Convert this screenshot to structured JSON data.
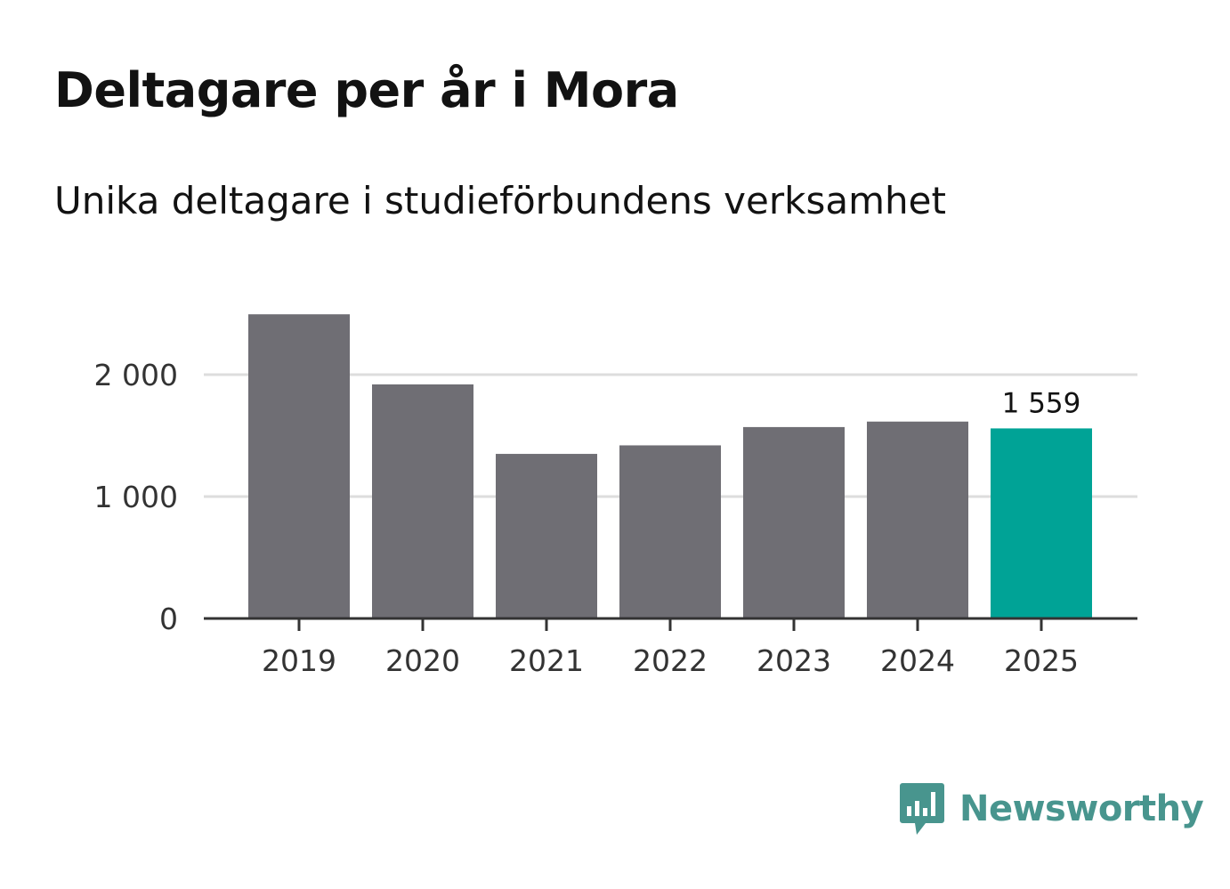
{
  "title": "Deltagare per år i Mora",
  "subtitle": "Unika deltagare i studieförbundens verksamhet",
  "brand": {
    "name": "Newsworthy",
    "color": "#48958e"
  },
  "colors": {
    "bar": "#6f6e74",
    "highlight": "#00a396",
    "grid": "#dddddd",
    "axis": "#333333"
  },
  "chart_data": {
    "type": "bar",
    "title": "Deltagare per år i Mora",
    "subtitle": "Unika deltagare i studieförbundens verksamhet",
    "categories": [
      "2019",
      "2020",
      "2021",
      "2022",
      "2023",
      "2024",
      "2025"
    ],
    "values": [
      2495,
      1920,
      1350,
      1420,
      1570,
      1615,
      1559
    ],
    "highlight_index": 6,
    "data_labels": [
      {
        "index": 6,
        "text": "1 559"
      }
    ],
    "xlabel": "",
    "ylabel": "",
    "ylim": [
      0,
      2700
    ],
    "yticks": [
      0,
      1000,
      2000
    ],
    "ytick_labels": [
      "0",
      "1 000",
      "2 000"
    ],
    "grid": true,
    "legend": "none"
  }
}
